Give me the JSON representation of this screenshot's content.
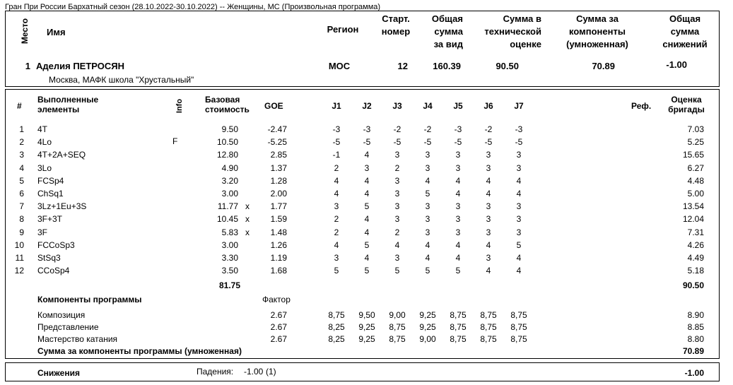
{
  "event_title": "Гран При России Бархатный сезон (28.10.2022-30.10.2022)  --  Женщины, МС  (Произвольная программа)",
  "header": {
    "place_label": "Место",
    "name_label": "Имя",
    "region_label": "Регион",
    "start_label": "Старт.\nномер",
    "total_label": "Общая\nсумма\nза вид",
    "tech_label": "Сумма в\nтехнической\nоценке",
    "comp_label": "Сумма за\nкомпоненты\n(умноженная)",
    "ded_label": "Общая\nсумма\nснижений"
  },
  "skater": {
    "place": "1",
    "name": "Аделия ПЕТРОСЯН",
    "club": "Москва, МАФК школа \"Хрустальный\"",
    "region": "МОС",
    "start_no": "12",
    "total": "160.39",
    "tech": "90.50",
    "comp": "70.89",
    "ded": "-1.00"
  },
  "table_header": {
    "num": "#",
    "elements": "Выполненные\nэлементы",
    "info": "Info",
    "base": "Базовая\nстоимость",
    "goe": "GOE",
    "judges": [
      "J1",
      "J2",
      "J3",
      "J4",
      "J5",
      "J6",
      "J7"
    ],
    "ref": "Реф.",
    "panel": "Оценка\nбригады"
  },
  "elements": [
    {
      "n": "1",
      "el": "4T",
      "info": "",
      "base": "9.50",
      "x": "",
      "goe": "-2.47",
      "j": [
        "-3",
        "-3",
        "-2",
        "-2",
        "-3",
        "-2",
        "-3"
      ],
      "score": "7.03"
    },
    {
      "n": "2",
      "el": "4Lo",
      "info": "F",
      "base": "10.50",
      "x": "",
      "goe": "-5.25",
      "j": [
        "-5",
        "-5",
        "-5",
        "-5",
        "-5",
        "-5",
        "-5"
      ],
      "score": "5.25"
    },
    {
      "n": "3",
      "el": "4T+2A+SEQ",
      "info": "",
      "base": "12.80",
      "x": "",
      "goe": "2.85",
      "j": [
        "-1",
        "4",
        "3",
        "3",
        "3",
        "3",
        "3"
      ],
      "score": "15.65"
    },
    {
      "n": "4",
      "el": "3Lo",
      "info": "",
      "base": "4.90",
      "x": "",
      "goe": "1.37",
      "j": [
        "2",
        "3",
        "2",
        "3",
        "3",
        "3",
        "3"
      ],
      "score": "6.27"
    },
    {
      "n": "5",
      "el": "FCSp4",
      "info": "",
      "base": "3.20",
      "x": "",
      "goe": "1.28",
      "j": [
        "4",
        "4",
        "3",
        "4",
        "4",
        "4",
        "4"
      ],
      "score": "4.48"
    },
    {
      "n": "6",
      "el": "ChSq1",
      "info": "",
      "base": "3.00",
      "x": "",
      "goe": "2.00",
      "j": [
        "4",
        "4",
        "3",
        "5",
        "4",
        "4",
        "4"
      ],
      "score": "5.00"
    },
    {
      "n": "7",
      "el": "3Lz+1Eu+3S",
      "info": "",
      "base": "11.77",
      "x": "x",
      "goe": "1.77",
      "j": [
        "3",
        "5",
        "3",
        "3",
        "3",
        "3",
        "3"
      ],
      "score": "13.54"
    },
    {
      "n": "8",
      "el": "3F+3T",
      "info": "",
      "base": "10.45",
      "x": "x",
      "goe": "1.59",
      "j": [
        "2",
        "4",
        "3",
        "3",
        "3",
        "3",
        "3"
      ],
      "score": "12.04"
    },
    {
      "n": "9",
      "el": "3F",
      "info": "",
      "base": "5.83",
      "x": "x",
      "goe": "1.48",
      "j": [
        "2",
        "4",
        "2",
        "3",
        "3",
        "3",
        "3"
      ],
      "score": "7.31"
    },
    {
      "n": "10",
      "el": "FCCoSp3",
      "info": "",
      "base": "3.00",
      "x": "",
      "goe": "1.26",
      "j": [
        "4",
        "5",
        "4",
        "4",
        "4",
        "4",
        "5"
      ],
      "score": "4.26"
    },
    {
      "n": "11",
      "el": "StSq3",
      "info": "",
      "base": "3.30",
      "x": "",
      "goe": "1.19",
      "j": [
        "3",
        "4",
        "3",
        "4",
        "4",
        "3",
        "4"
      ],
      "score": "4.49"
    },
    {
      "n": "12",
      "el": "CCoSp4",
      "info": "",
      "base": "3.50",
      "x": "",
      "goe": "1.68",
      "j": [
        "5",
        "5",
        "5",
        "5",
        "5",
        "4",
        "4"
      ],
      "score": "5.18"
    }
  ],
  "base_total": "81.75",
  "tech_total": "90.50",
  "components": {
    "title": "Компоненты программы",
    "factor_label": "Фактор",
    "rows": [
      {
        "name": "Композиция",
        "factor": "2.67",
        "j": [
          "8,75",
          "9,50",
          "9,00",
          "9,25",
          "8,75",
          "8,75",
          "8,75"
        ],
        "score": "8.90"
      },
      {
        "name": "Представление",
        "factor": "2.67",
        "j": [
          "8,25",
          "9,25",
          "8,75",
          "9,25",
          "8,75",
          "8,75",
          "8,75"
        ],
        "score": "8.85"
      },
      {
        "name": "Мастерство катания",
        "factor": "2.67",
        "j": [
          "8,25",
          "9,25",
          "8,75",
          "9,00",
          "8,75",
          "8,75",
          "8,75"
        ],
        "score": "8.80"
      }
    ],
    "sum_label": "Сумма за компоненты программы (умноженная)",
    "sum": "70.89"
  },
  "deductions": {
    "label": "Снижения",
    "falls_label": "Падения:",
    "falls_value": "-1.00",
    "falls_count": "(1)",
    "total": "-1.00"
  }
}
